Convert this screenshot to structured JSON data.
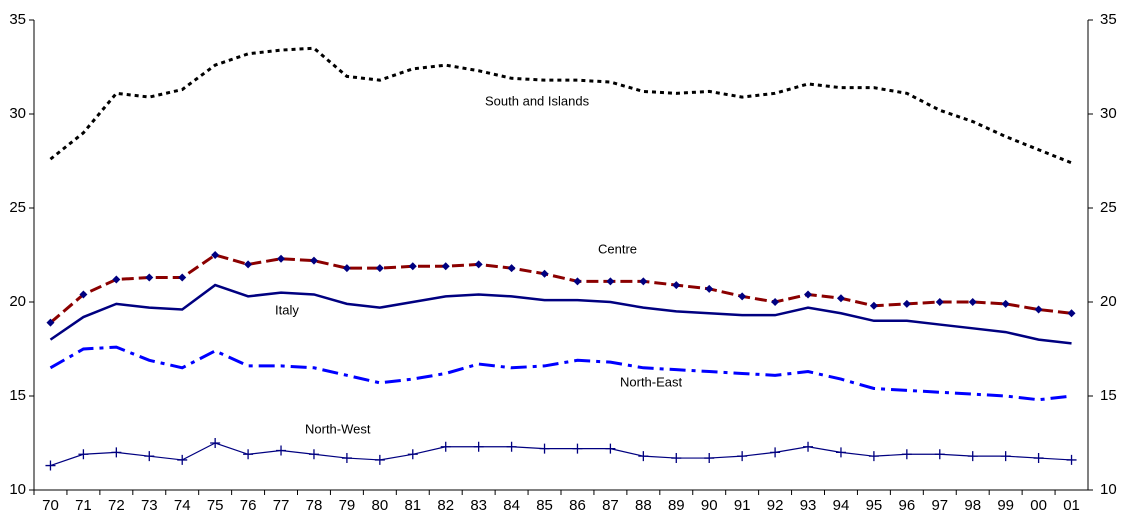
{
  "chart_data": {
    "type": "line",
    "categories": [
      "70",
      "71",
      "72",
      "73",
      "74",
      "75",
      "76",
      "77",
      "78",
      "79",
      "80",
      "81",
      "82",
      "83",
      "84",
      "85",
      "86",
      "87",
      "88",
      "89",
      "90",
      "91",
      "92",
      "93",
      "94",
      "95",
      "96",
      "97",
      "98",
      "99",
      "00",
      "01"
    ],
    "series": [
      {
        "name": "South and Islands",
        "color": "#000000",
        "line_style": "dotted",
        "marker": null,
        "values": [
          27.6,
          29.0,
          31.1,
          30.9,
          31.3,
          32.6,
          33.2,
          33.4,
          33.5,
          32.0,
          31.8,
          32.4,
          32.6,
          32.3,
          31.9,
          31.8,
          31.8,
          31.7,
          31.2,
          31.1,
          31.2,
          30.9,
          31.1,
          31.6,
          31.4,
          31.4,
          31.1,
          30.2,
          29.6,
          28.8,
          28.1,
          27.4
        ]
      },
      {
        "name": "Centre",
        "color": "#8b0000",
        "line_style": "dashed",
        "marker": "diamond",
        "marker_color": "#000080",
        "values": [
          18.9,
          20.4,
          21.2,
          21.3,
          21.3,
          22.5,
          22.0,
          22.3,
          22.2,
          21.8,
          21.8,
          21.9,
          21.9,
          22.0,
          21.8,
          21.5,
          21.1,
          21.1,
          21.1,
          20.9,
          20.7,
          20.3,
          20.0,
          20.4,
          20.2,
          19.8,
          19.9,
          20.0,
          20.0,
          19.9,
          19.6,
          19.4
        ]
      },
      {
        "name": "Italy",
        "color": "#000080",
        "line_style": "solid",
        "marker": null,
        "values": [
          18.0,
          19.2,
          19.9,
          19.7,
          19.6,
          20.9,
          20.3,
          20.5,
          20.4,
          19.9,
          19.7,
          20.0,
          20.3,
          20.4,
          20.3,
          20.1,
          20.1,
          20.0,
          19.7,
          19.5,
          19.4,
          19.3,
          19.3,
          19.7,
          19.4,
          19.0,
          19.0,
          18.8,
          18.6,
          18.4,
          18.0,
          17.8
        ]
      },
      {
        "name": "North-East",
        "color": "#0000ff",
        "line_style": "dash-dot",
        "marker": null,
        "values": [
          16.5,
          17.5,
          17.6,
          16.9,
          16.5,
          17.4,
          16.6,
          16.6,
          16.5,
          16.1,
          15.7,
          15.9,
          16.2,
          16.7,
          16.5,
          16.6,
          16.9,
          16.8,
          16.5,
          16.4,
          16.3,
          16.2,
          16.1,
          16.3,
          15.9,
          15.4,
          15.3,
          15.2,
          15.1,
          15.0,
          14.8,
          15.0
        ]
      },
      {
        "name": "North-West",
        "color": "#000080",
        "line_style": "thin",
        "marker": "plus",
        "marker_color": "#000080",
        "values": [
          11.3,
          11.9,
          12.0,
          11.8,
          11.6,
          12.5,
          11.9,
          12.1,
          11.9,
          11.7,
          11.6,
          11.9,
          12.3,
          12.3,
          12.3,
          12.2,
          12.2,
          12.2,
          11.8,
          11.7,
          11.7,
          11.8,
          12.0,
          12.3,
          12.0,
          11.8,
          11.9,
          11.9,
          11.8,
          11.8,
          11.7,
          11.6
        ]
      }
    ],
    "ylim": [
      10,
      35
    ],
    "yticks": [
      10,
      15,
      20,
      25,
      30,
      35
    ],
    "y2lim": [
      10,
      35
    ],
    "y2ticks": [
      10,
      15,
      20,
      25,
      30,
      35
    ],
    "grid": false
  }
}
